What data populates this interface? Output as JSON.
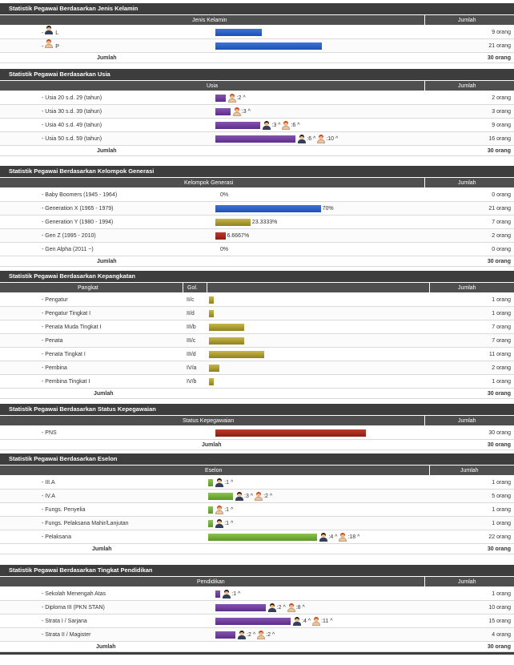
{
  "dash": "- ",
  "orang": "orang",
  "gender": {
    "title": "Statistik Pegawai Berdasarkan Jenis Kelamin",
    "col_main": "Jenis Kelamin",
    "col_count": "Jumlah",
    "rows": [
      {
        "label": "L",
        "icon": "male",
        "count": "9 orang"
      },
      {
        "label": "P",
        "icon": "female",
        "count": "21 orang"
      }
    ],
    "total_label": "Jumlah",
    "total_value": "30 orang"
  },
  "age": {
    "title": "Statistik Pegawai Berdasarkan Usia",
    "col_main": "Usia",
    "col_count": "Jumlah",
    "rows": [
      {
        "label": "Usia 20 s.d. 29 (tahun)",
        "count": "2 orang",
        "male": null,
        "female": ":2 ^"
      },
      {
        "label": "Usia 30 s.d. 39 (tahun)",
        "count": "3 orang",
        "male": null,
        "female": ":3 ^"
      },
      {
        "label": "Usia 40 s.d. 49 (tahun)",
        "count": "9 orang",
        "male": ":3 ^",
        "female": ":6 ^"
      },
      {
        "label": "Usia 50 s.d. 59 (tahun)",
        "count": "16 orang",
        "male": ":6 ^",
        "female": ":10 ^"
      }
    ],
    "total_label": "Jumlah",
    "total_value": "30 orang"
  },
  "generation": {
    "title": "Statistik Pegawai Berdasarkan Kelompok Generasi",
    "col_main": "Kelompok Generasi",
    "col_count": "Jumlah",
    "rows": [
      {
        "label": "Baby Boomers (1945 - 1964)",
        "pct": "0%",
        "count": "0 orang"
      },
      {
        "label": "Generation X (1965 - 1979)",
        "pct": "70%",
        "count": "21 orang"
      },
      {
        "label": "Generation Y (1980 - 1994)",
        "pct": "23.3333%",
        "count": "7 orang"
      },
      {
        "label": "Gen Z (1995 - 2010)",
        "pct": "6.6667%",
        "count": "2 orang"
      },
      {
        "label": "Gen Alpha (2011 ~)",
        "pct": "0%",
        "count": "0 orang"
      }
    ],
    "total_label": "Jumlah",
    "total_value": "30 orang"
  },
  "rank": {
    "title": "Statistik Pegawai Berdasarkan Kepangkatan",
    "col_main": "Pangkat",
    "col_gol": "Gol.",
    "col_count": "Jumlah",
    "rows": [
      {
        "label": "Pengatur",
        "gol": "II/c",
        "count": "1 orang"
      },
      {
        "label": "Pengatur Tingkat I",
        "gol": "II/d",
        "count": "1 orang"
      },
      {
        "label": "Penata Muda Tingkat I",
        "gol": "III/b",
        "count": "7 orang"
      },
      {
        "label": "Penata",
        "gol": "III/c",
        "count": "7 orang"
      },
      {
        "label": "Penata Tingkat I",
        "gol": "III/d",
        "count": "11 orang"
      },
      {
        "label": "Pembina",
        "gol": "IV/a",
        "count": "2 orang"
      },
      {
        "label": "Pembina Tingkat I",
        "gol": "IV/b",
        "count": "1 orang"
      }
    ],
    "total_label": "Jumlah",
    "total_value": "30 orang"
  },
  "status": {
    "title": "Statistik Pegawai Berdasarkan Status Kepegawaian",
    "col_main": "Status Kepegawaian",
    "col_count": "Jumlah",
    "rows": [
      {
        "label": "PNS",
        "count": "30 orang"
      }
    ],
    "total_label": "Jumlah",
    "total_value": "30 orang"
  },
  "echelon": {
    "title": "Statistik Pegawai Berdasarkan Eselon",
    "col_main": "Eselon",
    "col_count": "Jumlah",
    "rows": [
      {
        "label": "III.A",
        "count": "1 orang",
        "male": ":1 ^",
        "female": null
      },
      {
        "label": "IV.A",
        "count": "5 orang",
        "male": ":3 ^",
        "female": ":2 ^"
      },
      {
        "label": "Fungs. Penyelia",
        "count": "1 orang",
        "male": null,
        "female": ":1 ^"
      },
      {
        "label": "Fungs. Pelaksana Mahir/Lanjutan",
        "count": "1 orang",
        "male": ":1 ^",
        "female": null
      },
      {
        "label": "Pelaksana",
        "count": "22 orang",
        "male": ":4 ^",
        "female": ":18 ^"
      }
    ],
    "total_label": "Jumlah",
    "total_value": "30 orang"
  },
  "education": {
    "title": "Statistik Pegawai Berdasarkan Tingkat Pendidikan",
    "col_main": "Pendidikan",
    "col_count": "Jumlah",
    "rows": [
      {
        "label": "Sekolah Menengah Atas",
        "count": "1 orang",
        "male": ":1 ^",
        "female": null
      },
      {
        "label": "Diploma III (PKN STAN)",
        "count": "10 orang",
        "male": ":2 ^",
        "female": ":8 ^"
      },
      {
        "label": "Strata I / Sarjana",
        "count": "15 orang",
        "male": ":4 ^",
        "female": ":11 ^"
      },
      {
        "label": "Strata II / Magister",
        "count": "4 orang",
        "male": ":2 ^",
        "female": ":2 ^"
      }
    ],
    "total_label": "Jumlah",
    "total_value": "30 orang"
  }
}
